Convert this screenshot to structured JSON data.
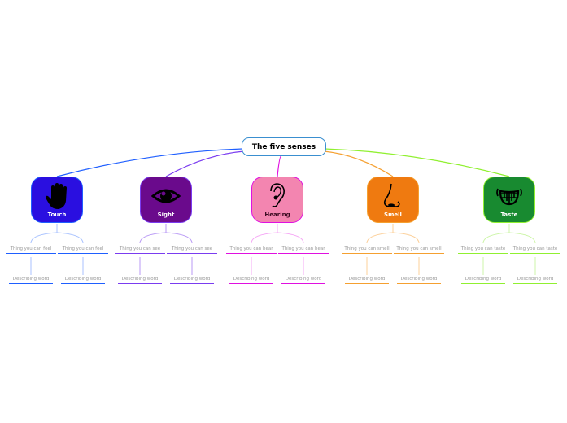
{
  "root": {
    "label": "The five senses",
    "color": "#3a8fd0"
  },
  "senses": [
    {
      "label": "Touch",
      "icon": "hand-icon",
      "fill": "#2a0fe0",
      "border": "#1f5fff",
      "line": "#1f5fff",
      "light": "#a8c2ff",
      "text": "#ffffff",
      "children": [
        {
          "label": "Thing you can feel",
          "child": "Describing word"
        },
        {
          "label": "Thing you can feel",
          "child": "Describing word"
        }
      ]
    },
    {
      "label": "Sight",
      "icon": "eye-icon",
      "fill": "#6a0a8c",
      "border": "#7a3cf0",
      "line": "#7a3cf0",
      "light": "#b99af5",
      "text": "#ffffff",
      "children": [
        {
          "label": "Thing you can see",
          "child": "Describing word"
        },
        {
          "label": "Thing you can see",
          "child": "Describing word"
        }
      ]
    },
    {
      "label": "Hearing",
      "icon": "ear-icon",
      "fill": "#f385b0",
      "border": "#e010e0",
      "line": "#e010e0",
      "light": "#f5a8f5",
      "text": "#3a0a20",
      "children": [
        {
          "label": "Thing you can hear",
          "child": "Describing word"
        },
        {
          "label": "Thing you can hear",
          "child": "Describing word"
        }
      ]
    },
    {
      "label": "Smell",
      "icon": "nose-icon",
      "fill": "#ef7a10",
      "border": "#f5a030",
      "line": "#f5a030",
      "light": "#fcd09a",
      "text": "#ffffff",
      "children": [
        {
          "label": "Thing you can smell",
          "child": "Describing word"
        },
        {
          "label": "Thing you can smell",
          "child": "Describing word"
        }
      ]
    },
    {
      "label": "Taste",
      "icon": "smile-teeth-icon",
      "fill": "#188a30",
      "border": "#90f030",
      "line": "#90f030",
      "light": "#cdf5a8",
      "text": "#ffffff",
      "children": [
        {
          "label": "Thing you can taste",
          "child": "Describing word"
        },
        {
          "label": "Thing you can taste",
          "child": "Describing word"
        }
      ]
    }
  ]
}
